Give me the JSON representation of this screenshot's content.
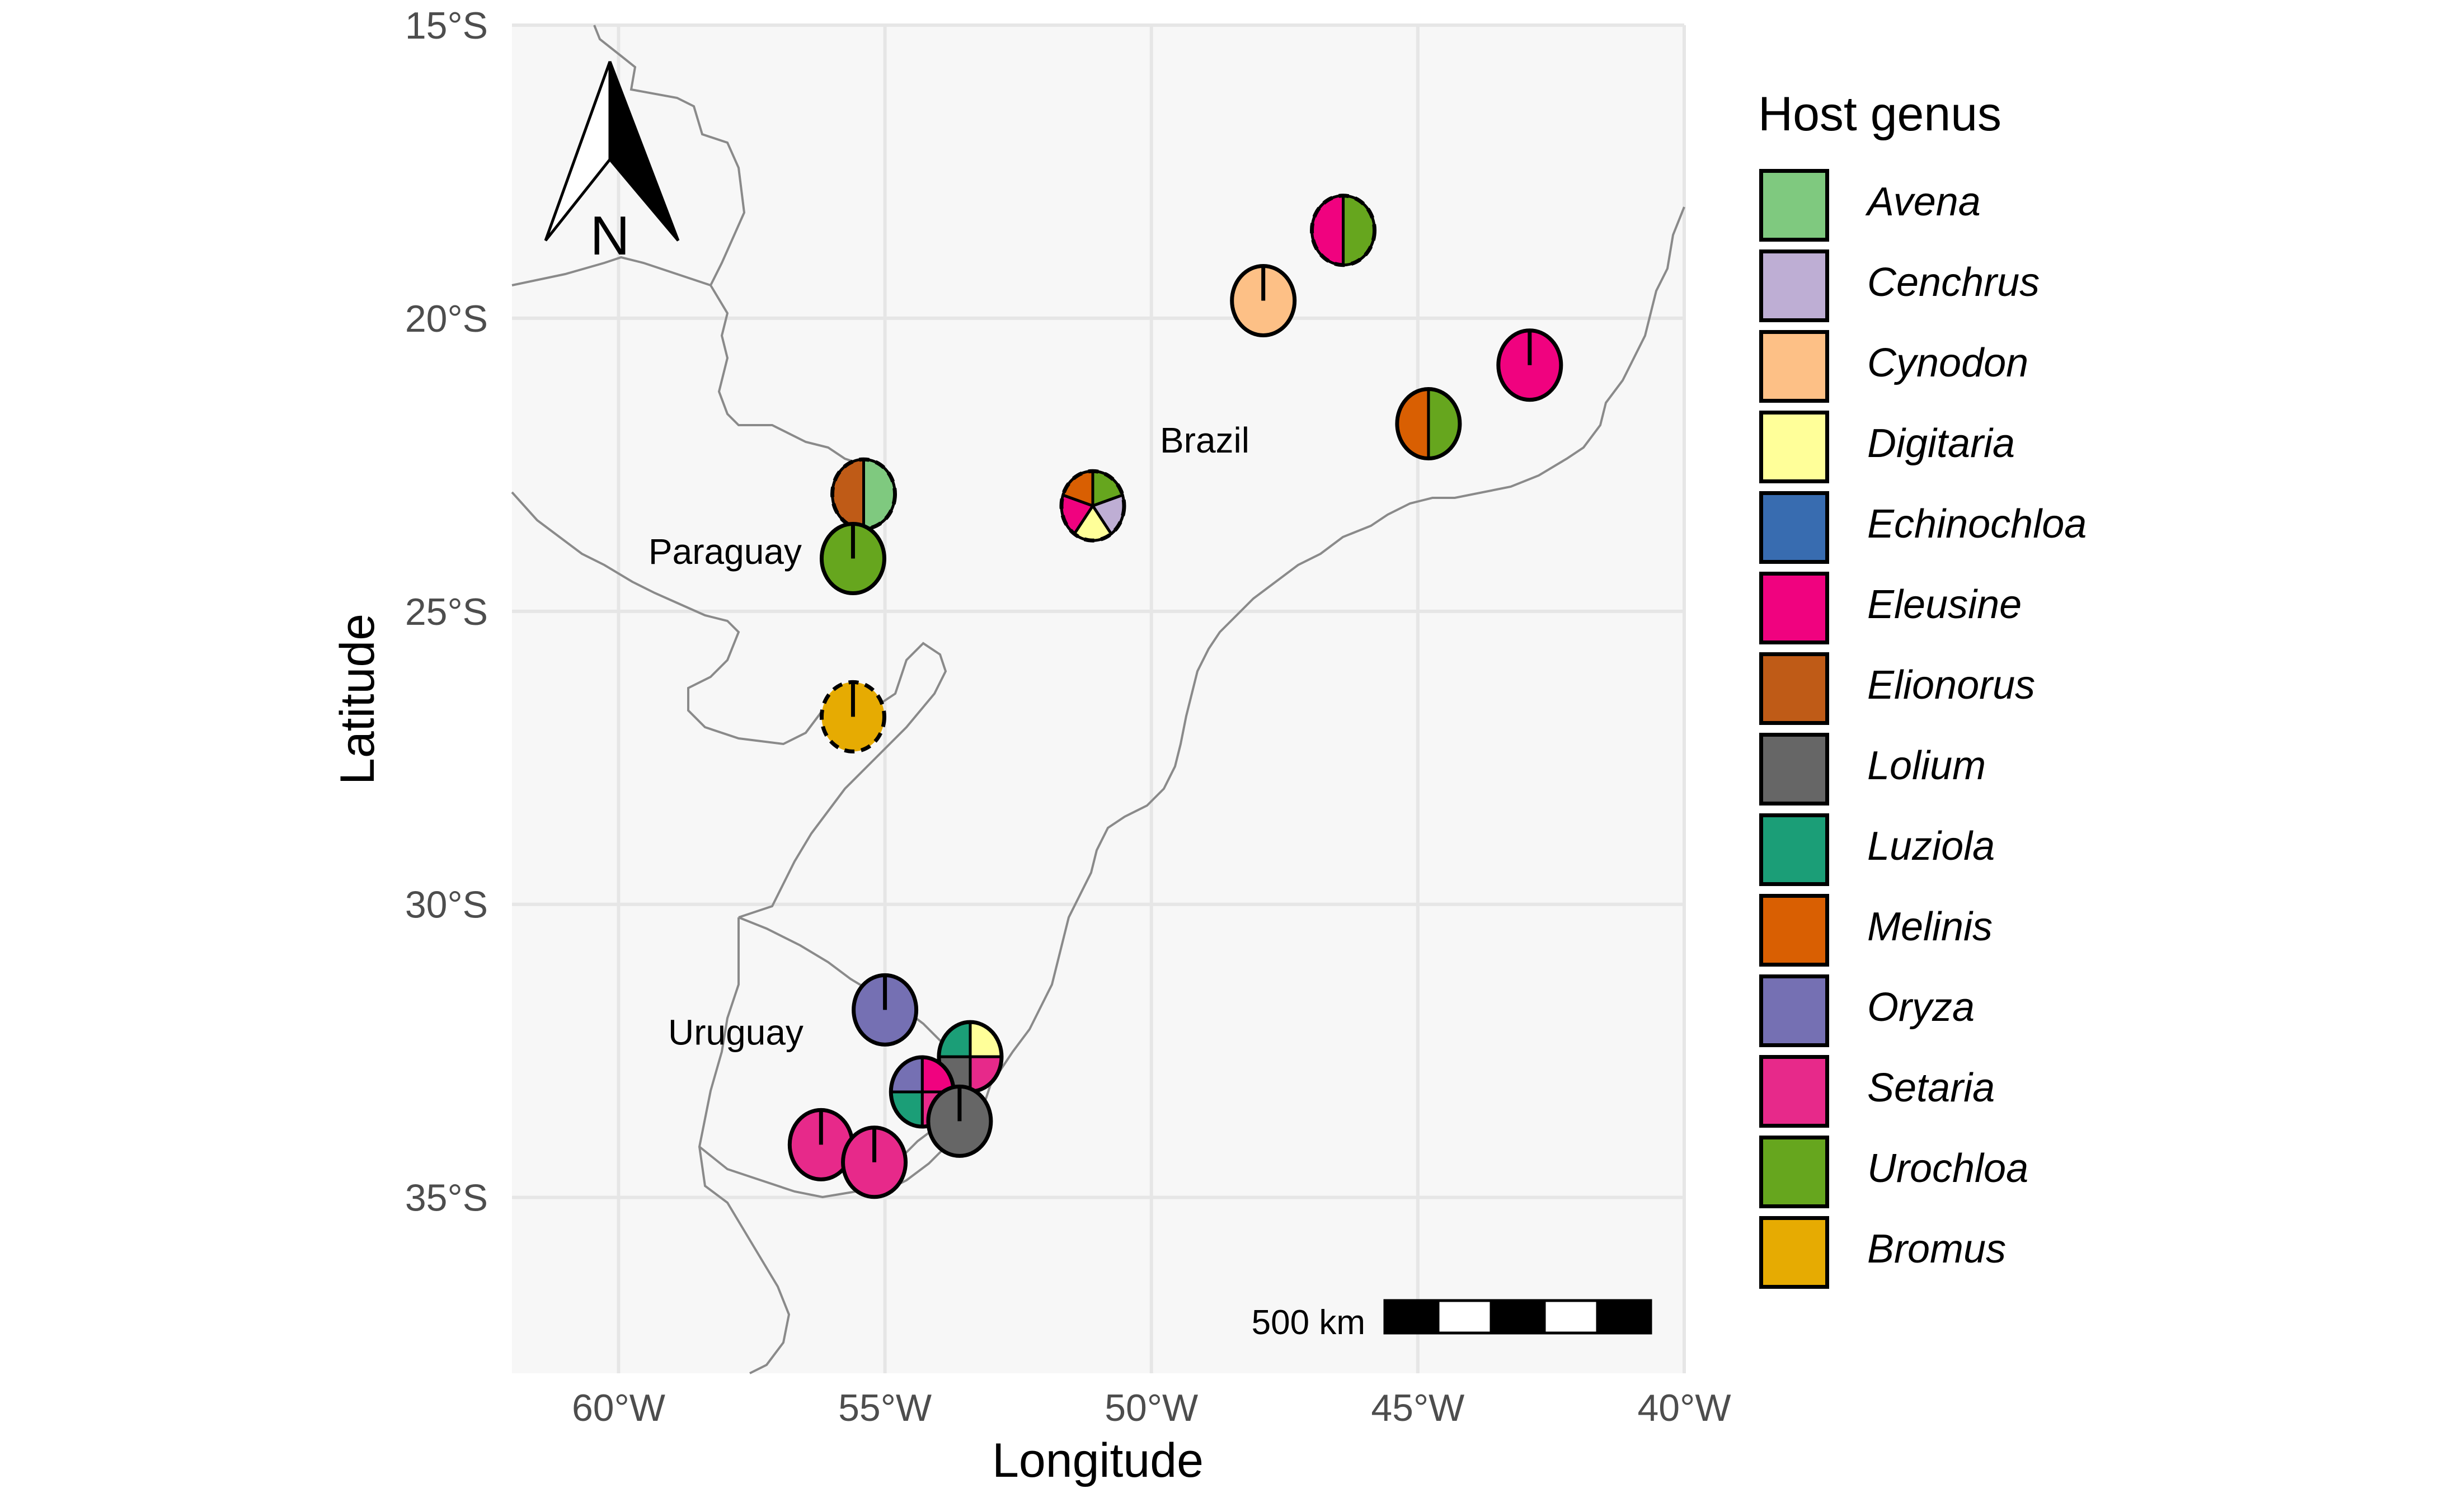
{
  "legend": {
    "title": "Host genus",
    "items": [
      {
        "label": "Avena",
        "color": "#7FC97F"
      },
      {
        "label": "Cenchrus",
        "color": "#BEAED4"
      },
      {
        "label": "Cynodon",
        "color": "#FDC086"
      },
      {
        "label": "Digitaria",
        "color": "#FFFF99"
      },
      {
        "label": "Echinochloa",
        "color": "#386CB0"
      },
      {
        "label": "Eleusine",
        "color": "#F0027F"
      },
      {
        "label": "Elionorus",
        "color": "#BF5B17"
      },
      {
        "label": "Lolium",
        "color": "#666666"
      },
      {
        "label": "Luziola",
        "color": "#1B9E77"
      },
      {
        "label": "Melinis",
        "color": "#D95F02"
      },
      {
        "label": "Oryza",
        "color": "#7570B3"
      },
      {
        "label": "Setaria",
        "color": "#E7298A"
      },
      {
        "label": "Urochloa",
        "color": "#66A61E"
      },
      {
        "label": "Bromus",
        "color": "#E6AB02"
      }
    ]
  },
  "axes": {
    "xlabel": "Longitude",
    "ylabel": "Latitude",
    "x_ticks": [
      {
        "value": -60,
        "label": "60°W"
      },
      {
        "value": -55,
        "label": "55°W"
      },
      {
        "value": -50,
        "label": "50°W"
      },
      {
        "value": -45,
        "label": "45°W"
      },
      {
        "value": -40,
        "label": "40°W"
      }
    ],
    "y_ticks": [
      {
        "value": -15,
        "label": "15°S"
      },
      {
        "value": -20,
        "label": "20°S"
      },
      {
        "value": -25,
        "label": "25°S"
      },
      {
        "value": -30,
        "label": "30°S"
      },
      {
        "value": -35,
        "label": "35°S"
      }
    ],
    "xlim": [
      -62,
      -40
    ],
    "ylim": [
      -38,
      -15
    ]
  },
  "countries": [
    {
      "label": "Brazil",
      "lon": -49.0,
      "lat": -22.1
    },
    {
      "label": "Paraguay",
      "lon": -58.0,
      "lat": -24.0
    },
    {
      "label": "Uruguay",
      "lon": -57.8,
      "lat": -32.2
    }
  ],
  "north_arrow": {
    "label": "N"
  },
  "scale_bar": {
    "label": "500 km"
  },
  "samples": [
    {
      "lon": -46.4,
      "lat": -18.5,
      "dashed": true,
      "genera": [
        "Urochloa",
        "Eleusine"
      ]
    },
    {
      "lon": -47.9,
      "lat": -19.7,
      "dashed": false,
      "genera": [
        "Cynodon"
      ]
    },
    {
      "lon": -42.9,
      "lat": -20.8,
      "dashed": false,
      "genera": [
        "Eleusine"
      ]
    },
    {
      "lon": -44.8,
      "lat": -21.8,
      "dashed": false,
      "genera": [
        "Urochloa",
        "Melinis"
      ]
    },
    {
      "lon": -51.1,
      "lat": -23.2,
      "dashed": true,
      "genera": [
        "Urochloa",
        "Cenchrus",
        "Digitaria",
        "Eleusine",
        "Melinis"
      ]
    },
    {
      "lon": -55.4,
      "lat": -23.0,
      "dashed": true,
      "genera": [
        "Avena",
        "Elionorus"
      ]
    },
    {
      "lon": -55.6,
      "lat": -24.1,
      "dashed": false,
      "genera": [
        "Urochloa"
      ]
    },
    {
      "lon": -55.6,
      "lat": -26.8,
      "dashed": true,
      "genera": [
        "Bromus"
      ]
    },
    {
      "lon": -55.0,
      "lat": -31.8,
      "dashed": false,
      "genera": [
        "Oryza"
      ]
    },
    {
      "lon": -53.4,
      "lat": -32.6,
      "dashed": false,
      "genera": [
        "Digitaria",
        "Setaria",
        "Lolium",
        "Luziola"
      ]
    },
    {
      "lon": -54.3,
      "lat": -33.2,
      "dashed": false,
      "genera": [
        "Eleusine",
        "Setaria",
        "Luziola",
        "Oryza"
      ]
    },
    {
      "lon": -53.6,
      "lat": -33.7,
      "dashed": false,
      "genera": [
        "Lolium"
      ]
    },
    {
      "lon": -56.2,
      "lat": -34.1,
      "dashed": false,
      "genera": [
        "Setaria"
      ]
    },
    {
      "lon": -55.2,
      "lat": -34.4,
      "dashed": false,
      "genera": [
        "Setaria"
      ]
    }
  ]
}
